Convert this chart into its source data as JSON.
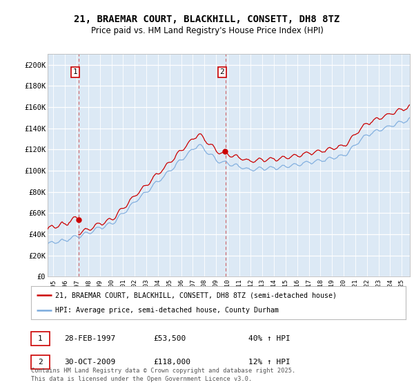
{
  "title": "21, BRAEMAR COURT, BLACKHILL, CONSETT, DH8 8TZ",
  "subtitle": "Price paid vs. HM Land Registry's House Price Index (HPI)",
  "ylabel_ticks": [
    "£0",
    "£20K",
    "£40K",
    "£60K",
    "£80K",
    "£100K",
    "£120K",
    "£140K",
    "£160K",
    "£180K",
    "£200K"
  ],
  "ytick_values": [
    0,
    20000,
    40000,
    60000,
    80000,
    100000,
    120000,
    140000,
    160000,
    180000,
    200000
  ],
  "ylim": [
    0,
    210000
  ],
  "xlim_start": 1994.5,
  "xlim_end": 2025.7,
  "background_color": "#dce9f5",
  "fig_color": "#ffffff",
  "line_color_red": "#cc0000",
  "line_color_blue": "#7aaadd",
  "grid_color": "#ffffff",
  "purchase1_year": 1997.163,
  "purchase1_price": 53500,
  "purchase1_label": "1",
  "purchase2_year": 2009.831,
  "purchase2_price": 118000,
  "purchase2_label": "2",
  "legend1_text": "21, BRAEMAR COURT, BLACKHILL, CONSETT, DH8 8TZ (semi-detached house)",
  "legend2_text": "HPI: Average price, semi-detached house, County Durham",
  "table_row1": [
    "1",
    "28-FEB-1997",
    "£53,500",
    "40% ↑ HPI"
  ],
  "table_row2": [
    "2",
    "30-OCT-2009",
    "£118,000",
    "12% ↑ HPI"
  ],
  "footer": "Contains HM Land Registry data © Crown copyright and database right 2025.\nThis data is licensed under the Open Government Licence v3.0.",
  "title_fontsize": 10,
  "subtitle_fontsize": 8.5,
  "tick_fontsize": 7.5,
  "annotation_fontsize": 8
}
